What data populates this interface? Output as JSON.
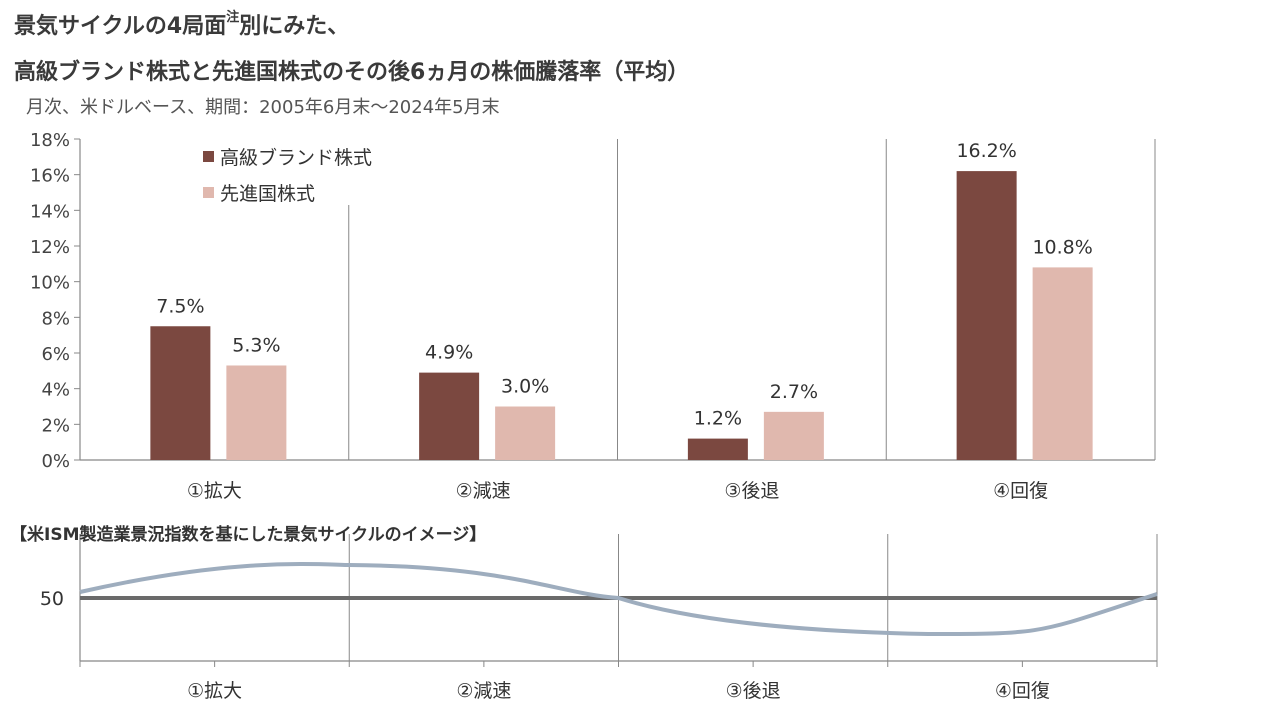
{
  "title_line1_a": "景気サイクルの4局面",
  "title_note": "注",
  "title_line1_b": "別にみた、",
  "title_line2": "高級ブランド株式と先進国株式のその後6ヵ月の株価騰落率（平均）",
  "subtitle": "月次、米ドルベース、期間：2005年6月末～2024年5月末",
  "colors": {
    "luxury": "#7b4840",
    "developed": "#e0b8ae",
    "grid": "#888888",
    "cycle_line": "#9eadbe",
    "baseline": "#6a6a6a"
  },
  "chart_data": {
    "type": "bar",
    "categories": [
      "①拡大",
      "②減速",
      "③後退",
      "④回復"
    ],
    "series": [
      {
        "name": "高級ブランド株式",
        "values": [
          7.5,
          4.9,
          1.2,
          16.2
        ]
      },
      {
        "name": "先進国株式",
        "values": [
          5.3,
          3.0,
          2.7,
          10.8
        ]
      }
    ],
    "value_labels": [
      [
        "7.5%",
        "4.9%",
        "1.2%",
        "16.2%"
      ],
      [
        "5.3%",
        "3.0%",
        "2.7%",
        "10.8%"
      ]
    ],
    "ylim": [
      0,
      18
    ],
    "yticks": [
      0,
      2,
      4,
      6,
      8,
      10,
      12,
      14,
      16,
      18
    ],
    "ytick_labels": [
      "0%",
      "2%",
      "4%",
      "6%",
      "8%",
      "10%",
      "12%",
      "14%",
      "16%",
      "18%"
    ],
    "legend_position": "top-left"
  },
  "cycle": {
    "title": "【米ISM製造業景況指数を基にした景気サイクルのイメージ】",
    "baseline_label": "50",
    "categories": [
      "①拡大",
      "②減速",
      "③後退",
      "④回復"
    ]
  }
}
